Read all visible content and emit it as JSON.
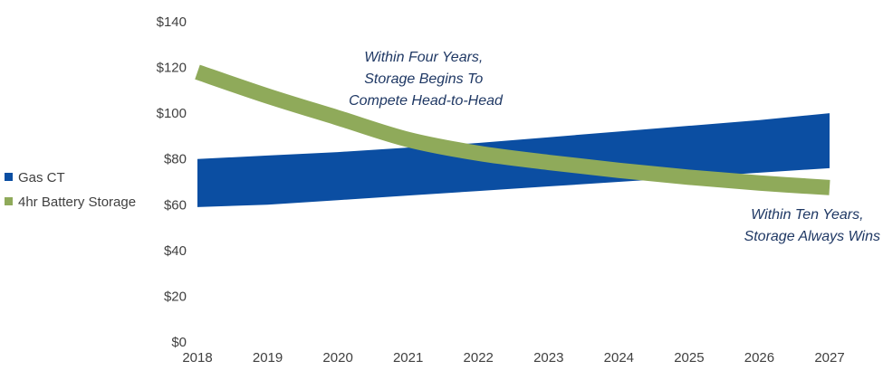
{
  "chart_data": {
    "type": "area",
    "title": "",
    "xlabel": "",
    "ylabel": "",
    "x": [
      2018,
      2019,
      2020,
      2021,
      2022,
      2023,
      2024,
      2025,
      2026,
      2027
    ],
    "x_tick_labels": [
      "2018",
      "2019",
      "2020",
      "2021",
      "2022",
      "2023",
      "2024",
      "2025",
      "2026",
      "2027"
    ],
    "y_tick_labels": [
      "$0",
      "$20",
      "$40",
      "$60",
      "$80",
      "$100",
      "$120",
      "$140"
    ],
    "y_ticks": [
      0,
      20,
      40,
      60,
      80,
      100,
      120,
      140
    ],
    "ylim": [
      0,
      140
    ],
    "grid": false,
    "legend_position": "left",
    "series": [
      {
        "name": "Gas CT",
        "kind": "range-band",
        "color": "#0b4ea2",
        "low": [
          59,
          60,
          62,
          64,
          66,
          68,
          70,
          72,
          74,
          76
        ],
        "high": [
          80,
          81.5,
          83,
          85,
          87,
          89.5,
          92,
          94.5,
          97,
          100
        ]
      },
      {
        "name": "4hr Battery Storage",
        "kind": "thick-line",
        "color": "#8faa5a",
        "values": [
          118,
          107.5,
          98,
          88.5,
          82.5,
          78.5,
          75,
          72,
          69.5,
          67.5
        ]
      }
    ],
    "annotations": [
      {
        "lines": [
          "Within Four Years,",
          "Storage Begins To",
          "Compete Head-to-Head"
        ]
      },
      {
        "lines": [
          "Within Ten Years,",
          "Storage Always Wins"
        ]
      }
    ]
  }
}
